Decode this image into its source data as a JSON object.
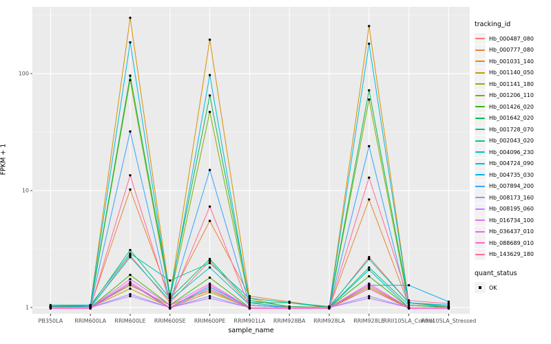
{
  "theme": {
    "panel_bg": "#EBEBEB",
    "grid_color": "#FFFFFF",
    "tick_color": "#333333",
    "axis_text_color": "#4D4D4D",
    "text_color": "#000000",
    "legend_key_bg": "#F2F2F2",
    "point_color": "#000000"
  },
  "chart_data": {
    "type": "line",
    "title": "",
    "xlabel": "sample_name",
    "ylabel": "FPKM + 1",
    "y_scale": "log10",
    "y_ticks": [
      1,
      10,
      100
    ],
    "y_minor_ticks": [
      3.1623,
      31.623,
      316.23
    ],
    "ylim": [
      0.89,
      372
    ],
    "grid": true,
    "legend_position": "right",
    "x_categories": [
      "PB350LA",
      "RRIM600LA",
      "RRIM600LE",
      "RRIM600SE",
      "RRIM600PE",
      "RRIM901LA",
      "RRIM928BA",
      "RRIM928LA",
      "RRIM928LE",
      "RRII105LA_Control",
      "RRII105LA_Stressed"
    ],
    "legend": {
      "tracking_title": "tracking_id",
      "quant_title": "quant_status",
      "quant_items": [
        "OK"
      ]
    },
    "series": [
      {
        "name": "Hb_000487_080",
        "color": "#F8766D",
        "values": [
          1.02,
          1.0,
          2.8,
          1.1,
          2.5,
          1.05,
          1.0,
          1.0,
          2.7,
          1.1,
          1.0
        ]
      },
      {
        "name": "Hb_000777_080",
        "color": "#EA8331",
        "values": [
          1.0,
          1.02,
          10.2,
          1.2,
          5.5,
          1.25,
          1.12,
          1.0,
          8.4,
          1.05,
          1.0
        ]
      },
      {
        "name": "Hb_001031_140",
        "color": "#D89000",
        "values": [
          1.03,
          1.05,
          300,
          1.25,
          195,
          1.2,
          1.0,
          1.02,
          255,
          1.1,
          1.0
        ]
      },
      {
        "name": "Hb_001140_050",
        "color": "#C09B00",
        "values": [
          1.0,
          1.0,
          1.45,
          1.0,
          1.35,
          1.0,
          1.0,
          1.0,
          1.45,
          1.0,
          1.0
        ]
      },
      {
        "name": "Hb_001141_180",
        "color": "#A3A500",
        "values": [
          1.0,
          1.0,
          1.55,
          1.05,
          1.4,
          1.0,
          1.0,
          1.0,
          1.5,
          1.0,
          1.0
        ]
      },
      {
        "name": "Hb_001206_110",
        "color": "#7CAE00",
        "values": [
          1.0,
          1.02,
          88,
          1.2,
          47,
          1.1,
          1.0,
          1.0,
          60,
          1.05,
          1.0
        ]
      },
      {
        "name": "Hb_001426_020",
        "color": "#39B600",
        "values": [
          1.0,
          1.0,
          1.9,
          1.05,
          1.8,
          1.0,
          1.0,
          1.0,
          1.85,
          1.0,
          1.0
        ]
      },
      {
        "name": "Hb_001642_020",
        "color": "#00BB4E",
        "values": [
          1.02,
          1.03,
          96,
          1.3,
          65,
          1.15,
          1.02,
          1.0,
          72,
          1.1,
          1.02
        ]
      },
      {
        "name": "Hb_001728_070",
        "color": "#00BF7D",
        "values": [
          1.0,
          1.02,
          3.1,
          1.2,
          2.6,
          1.1,
          1.1,
          1.0,
          2.2,
          1.05,
          1.0
        ]
      },
      {
        "name": "Hb_002043_020",
        "color": "#00C1A3",
        "values": [
          1.05,
          1.05,
          2.9,
          1.7,
          2.4,
          1.2,
          1.1,
          1.02,
          2.6,
          1.1,
          1.02
        ]
      },
      {
        "name": "Hb_004096_230",
        "color": "#00BFC4",
        "values": [
          1.0,
          1.0,
          2.7,
          1.15,
          2.2,
          1.05,
          1.0,
          1.0,
          2.1,
          1.0,
          1.0
        ]
      },
      {
        "name": "Hb_004724_090",
        "color": "#00BAE0",
        "values": [
          1.02,
          1.05,
          185,
          1.2,
          97,
          1.1,
          1.0,
          1.0,
          180,
          1.1,
          1.05
        ]
      },
      {
        "name": "Hb_004735_030",
        "color": "#00B0F6",
        "values": [
          1.0,
          1.0,
          1.6,
          1.0,
          1.5,
          1.0,
          1.0,
          1.0,
          1.55,
          1.55,
          1.12
        ]
      },
      {
        "name": "Hb_007894_200",
        "color": "#35A2FF",
        "values": [
          1.0,
          1.02,
          32,
          1.1,
          15,
          1.05,
          1.0,
          1.0,
          24,
          1.0,
          1.0
        ]
      },
      {
        "name": "Hb_008173_160",
        "color": "#9590FF",
        "values": [
          1.0,
          1.0,
          1.3,
          1.0,
          1.25,
          1.0,
          1.0,
          1.0,
          1.25,
          1.0,
          1.0
        ]
      },
      {
        "name": "Hb_008195_060",
        "color": "#C77CFF",
        "values": [
          1.0,
          1.0,
          1.25,
          1.0,
          1.2,
          1.0,
          1.0,
          1.0,
          1.2,
          1.0,
          1.0
        ]
      },
      {
        "name": "Hb_016734_100",
        "color": "#E76BF3",
        "values": [
          1.0,
          1.0,
          1.75,
          1.05,
          1.6,
          1.0,
          1.0,
          1.0,
          1.6,
          1.0,
          1.0
        ]
      },
      {
        "name": "Hb_036437_010",
        "color": "#FA62DB",
        "values": [
          1.0,
          1.0,
          1.65,
          1.0,
          1.55,
          1.0,
          1.0,
          1.0,
          1.55,
          1.0,
          1.0
        ]
      },
      {
        "name": "Hb_088689_010",
        "color": "#FF61CC",
        "values": [
          0.98,
          0.98,
          1.6,
          0.98,
          1.45,
          0.98,
          0.98,
          0.98,
          1.45,
          0.98,
          0.98
        ]
      },
      {
        "name": "Hb_143629_180",
        "color": "#FF6A98",
        "values": [
          1.0,
          1.0,
          13.5,
          1.1,
          7.3,
          1.0,
          1.0,
          1.0,
          12.9,
          1.15,
          1.08
        ]
      }
    ]
  }
}
